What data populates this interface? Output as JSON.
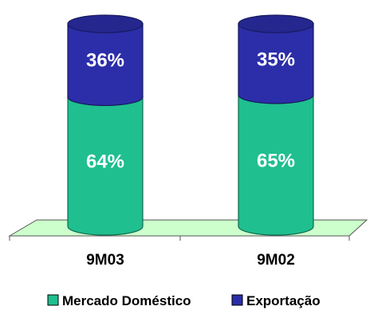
{
  "chart_data": {
    "type": "bar",
    "stacked": true,
    "percent": true,
    "shape": "cylinder",
    "categories": [
      "9M03",
      "9M02"
    ],
    "series": [
      {
        "name": "Mercado Doméstico",
        "color": "#1fbf8f",
        "values": [
          64,
          65
        ],
        "labels": [
          "64%",
          "65%"
        ]
      },
      {
        "name": "Exportação",
        "color": "#2b2ea8",
        "values": [
          36,
          35
        ],
        "labels": [
          "36%",
          "35%"
        ]
      }
    ],
    "ylim": [
      0,
      100
    ],
    "floor_color": "#ccffcc",
    "legend_position": "bottom",
    "grid": false
  }
}
